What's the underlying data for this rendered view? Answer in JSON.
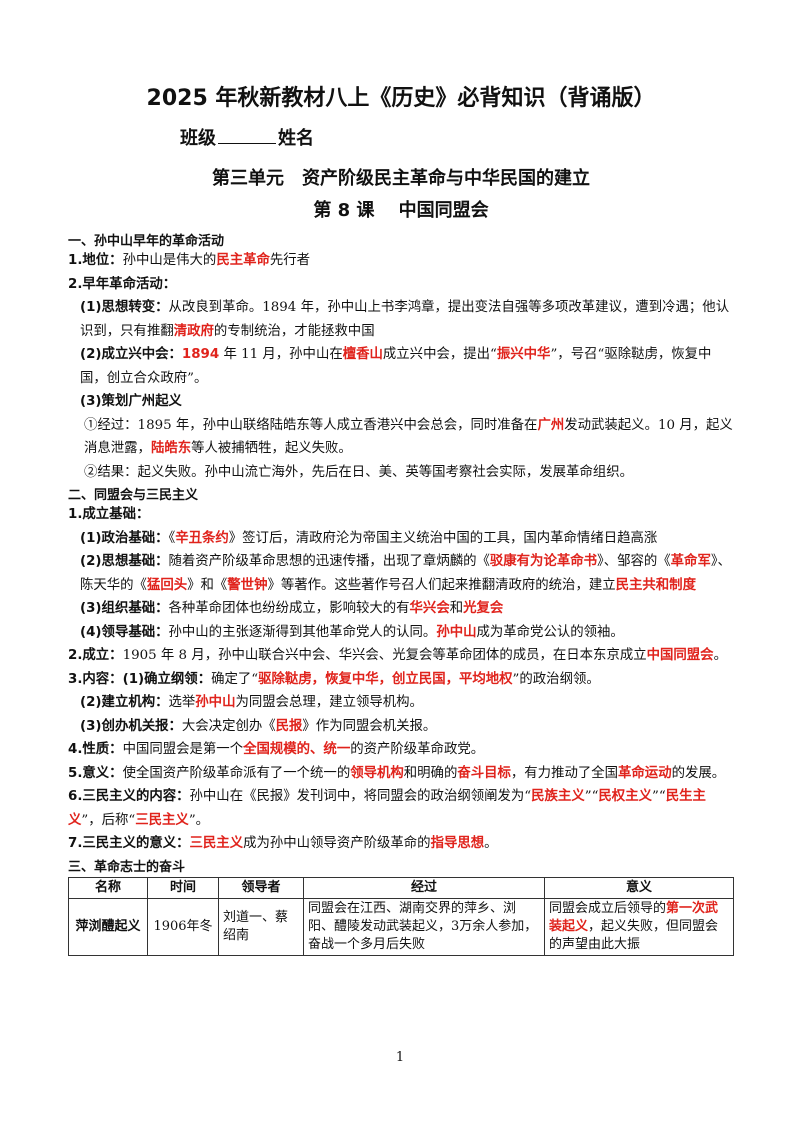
{
  "title": "2025 年秋新教材八上《历史》必背知识（背诵版）",
  "class_label": "班级",
  "name_label": "姓名",
  "unit": "第三单元　资产阶级民主革命与中华民国的建立",
  "lesson": "第 8 课　 中国同盟会",
  "paragraphs": [
    [
      "一、孙中山早年的革命活动"
    ],
    [
      "1.地位：",
      "孙中山是伟大的",
      "民主革命",
      "先行者"
    ],
    [
      "2.早年革命活动："
    ],
    [
      "(1)思想转变：",
      "从改良到革命。1894 年，孙中山上书李鸿章，提出变法自强等多项改革建议，遭到冷遇；他认　识到，只有推翻",
      "清政府",
      "的专制统治，才能拯救中国"
    ],
    [
      "(2)成立兴中会：",
      "1894",
      " 年 11 月，孙中山在",
      "檀香山",
      "成立兴中会，提出“",
      "振兴中华",
      "”，号召“驱除鞑虏，恢复中国，创立合众政府”。"
    ],
    [
      "(3)策划广州起义"
    ],
    [
      "①经过：1895 年，孙中山联络陆皓东等人成立香港兴中会总会，同时准备在",
      "广州",
      "发动武装起义。10 月，起义消息泄露，",
      "陆皓东",
      "等人被捕牺牲，起义失败。"
    ],
    [
      "②结果：起义失败。孙中山流亡海外，先后在日、美、英等国考察社会实际，发展革命组织。"
    ],
    [
      "二、同盟会与三民主义"
    ],
    [
      "1.成立基础："
    ],
    [
      "(1)政治基础：",
      "《",
      "辛丑条约",
      "》签订后，清政府沦为帝国主义统治中国的工具，国内革命情绪日趋高涨"
    ],
    [
      "(2)思想基础：",
      "随着资产阶级革命思想的迅速传播，出现了章炳麟的《",
      "驳康有为论革命书",
      "》、邹容的《",
      "革命军",
      "》、陈天华的《",
      "猛回头",
      "》和《",
      "警世钟",
      "》等著作。这些著作号召人们起来推翻清政府的统治，建立",
      "民主共和制度"
    ],
    [
      "(3)组织基础：",
      "各种革命团体也纷纷成立，影响较大的有",
      "华兴会",
      "和",
      "光复会"
    ],
    [
      "(4)领导基础：",
      "孙中山的主张逐渐得到其他革命党人的认同。",
      "孙中山",
      "成为革命党公认的领袖。"
    ],
    [
      "2.成立：",
      "1905 年 8 月，孙中山联合兴中会、华兴会、光复会等革命团体的成员，在日本东京成立",
      "中国同盟会",
      "。"
    ],
    [
      "3.内容：(1)确立纲领：",
      "确定了“",
      "驱除鞑虏，恢复中华，创立民国，平均地权",
      "”的政治纲领。"
    ],
    [
      "(2)建立机构：",
      "选举",
      "孙中山",
      "为同盟会总理，建立领导机构。"
    ],
    [
      "(3)创办机关报：",
      "大会决定创办《",
      "民报",
      "》作为同盟会机关报。"
    ],
    [
      "4.性质：",
      "中国同盟会是第一个",
      "全国规模的、统一",
      "的资产阶级革命政党。"
    ],
    [
      "5.意义：",
      "使全国资产阶级革命派有了一个统一的",
      "领导机构",
      "和明确的",
      "奋斗目标",
      "，有力推动了全国",
      "革命运动",
      "的发展。"
    ],
    [
      "6.三民主义的内容：",
      "孙中山在《民报》发刊词中，将同盟会的政治纲领阐发为“",
      "民族主义",
      "”“",
      "民权主义",
      "”“",
      "民生主义",
      "”，后称“",
      "三民主义",
      "”。"
    ],
    [
      "7.三民主义的意义：",
      "三民主义",
      "成为孙中山领导资产阶级革命的",
      "指导思想",
      "。"
    ],
    [
      "三、革命志士的奋斗"
    ]
  ],
  "table": {
    "header": [
      "名称",
      "时间",
      "领导者",
      "经过",
      "意义"
    ],
    "rows": [
      [
        "萍浏醴起义",
        "1906年冬",
        "刘道一、蔡绍南",
        "同盟会在江西、湖南交界的萍乡、浏阳、醴陵发动武装起义，3万余人参加，奋战一个多月后失败",
        [
          "同盟会成立后领导的",
          "第一次武装起义",
          "，起义失败，但同盟会的声望由此大振"
        ]
      ]
    ]
  },
  "page_number": "1"
}
